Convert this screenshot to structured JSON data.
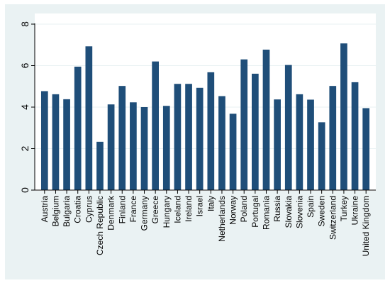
{
  "chart_data": {
    "type": "bar",
    "title": "",
    "xlabel": "",
    "ylabel": "",
    "ylim": [
      0,
      8
    ],
    "yticks": [
      0,
      2,
      4,
      6,
      8
    ],
    "grid": "horizontal",
    "legend": "none",
    "categories": [
      "Austria",
      "Belgium",
      "Bulgaria",
      "Croatia",
      "Cyprus",
      "Czech Republic",
      "Denmark",
      "Finland",
      "France",
      "Germany",
      "Greece",
      "Hungary",
      "Iceland",
      "Ireland",
      "Israel",
      "Italy",
      "Netherlands",
      "Norway",
      "Poland",
      "Portugal",
      "Romania",
      "Russia",
      "Slovakia",
      "Slovenia",
      "Spain",
      "Sweden",
      "Switzerland",
      "Turkey",
      "Ukraine",
      "United Kingdom"
    ],
    "values": [
      4.77,
      4.62,
      4.38,
      5.95,
      6.93,
      2.33,
      4.13,
      5.02,
      4.23,
      4.0,
      6.2,
      4.06,
      5.12,
      5.12,
      4.93,
      5.68,
      4.53,
      3.68,
      6.3,
      5.61,
      6.77,
      4.37,
      6.03,
      4.62,
      4.36,
      3.27,
      5.02,
      7.07,
      5.2,
      3.95
    ],
    "colors": {
      "bar": "#1f4e79",
      "frame": "#eaf2f3",
      "plot_bg": "#ffffff",
      "grid": "#eaf2f3",
      "axis": "#000000"
    }
  }
}
